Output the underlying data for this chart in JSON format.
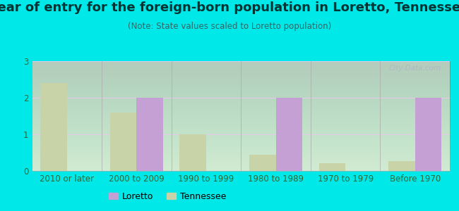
{
  "title": "Year of entry for the foreign-born population in Loretto, Tennessee",
  "subtitle": "(Note: State values scaled to Loretto population)",
  "categories": [
    "2010 or later",
    "2000 to 2009",
    "1990 to 1999",
    "1980 to 1989",
    "1970 to 1979",
    "Before 1970"
  ],
  "loretto": [
    0,
    2,
    0,
    2,
    0,
    2
  ],
  "tennessee": [
    2.4,
    1.6,
    1.0,
    0.45,
    0.22,
    0.27
  ],
  "loretto_color": "#c4a0d4",
  "tennessee_color": "#c8d4a8",
  "bg_outer": "#00e8e8",
  "bg_chart_top": "#f0f8f0",
  "bg_chart_bottom": "#d8ecd8",
  "ylim": [
    0,
    3
  ],
  "yticks": [
    0,
    1,
    2,
    3
  ],
  "bar_width": 0.38,
  "legend_loretto": "Loretto",
  "legend_tennessee": "Tennessee",
  "title_fontsize": 13,
  "subtitle_fontsize": 8.5,
  "axis_fontsize": 8.5,
  "watermark": "City-Data.com"
}
